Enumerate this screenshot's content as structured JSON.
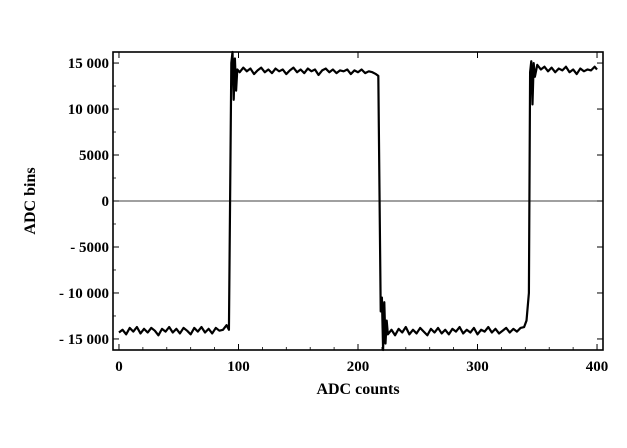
{
  "chart_data": {
    "type": "line",
    "title": "",
    "xlabel": "ADC counts",
    "ylabel": "ADC bins",
    "xlim": [
      -5,
      405
    ],
    "ylim": [
      -16200,
      16200
    ],
    "x_ticks": [
      0,
      100,
      200,
      300,
      400
    ],
    "x_tick_labels": [
      "0",
      "100",
      "200",
      "300",
      "400"
    ],
    "y_ticks": [
      15000,
      10000,
      5000,
      0,
      -5000,
      -10000,
      -15000
    ],
    "y_tick_labels": [
      "15 000",
      "10 000",
      "5000",
      "0",
      "- 5000",
      "- 10 000",
      "- 15 000"
    ],
    "zero_line": true,
    "grid": false,
    "series": [
      {
        "color": "#000000",
        "points": [
          [
            0,
            -14300
          ],
          [
            3,
            -14000
          ],
          [
            6,
            -14500
          ],
          [
            9,
            -13800
          ],
          [
            12,
            -14200
          ],
          [
            15,
            -13700
          ],
          [
            18,
            -14400
          ],
          [
            21,
            -13900
          ],
          [
            24,
            -14300
          ],
          [
            27,
            -13800
          ],
          [
            30,
            -14100
          ],
          [
            33,
            -14600
          ],
          [
            36,
            -13900
          ],
          [
            39,
            -14200
          ],
          [
            42,
            -13700
          ],
          [
            45,
            -14300
          ],
          [
            48,
            -13900
          ],
          [
            51,
            -14400
          ],
          [
            54,
            -13800
          ],
          [
            57,
            -14100
          ],
          [
            60,
            -14500
          ],
          [
            63,
            -13800
          ],
          [
            66,
            -14200
          ],
          [
            69,
            -13700
          ],
          [
            72,
            -14300
          ],
          [
            75,
            -13900
          ],
          [
            78,
            -14400
          ],
          [
            81,
            -13800
          ],
          [
            84,
            -14100
          ],
          [
            87,
            -14000
          ],
          [
            90,
            -13500
          ],
          [
            92,
            -14000
          ],
          [
            94,
            15000
          ],
          [
            95,
            16200
          ],
          [
            96,
            11000
          ],
          [
            97,
            15500
          ],
          [
            98,
            12000
          ],
          [
            99,
            14300
          ],
          [
            101,
            14000
          ],
          [
            104,
            14500
          ],
          [
            107,
            14100
          ],
          [
            110,
            14400
          ],
          [
            113,
            13800
          ],
          [
            116,
            14200
          ],
          [
            119,
            14500
          ],
          [
            122,
            14000
          ],
          [
            125,
            14300
          ],
          [
            128,
            13900
          ],
          [
            131,
            14400
          ],
          [
            134,
            14100
          ],
          [
            137,
            14300
          ],
          [
            140,
            13800
          ],
          [
            143,
            14200
          ],
          [
            146,
            14500
          ],
          [
            149,
            14000
          ],
          [
            152,
            14300
          ],
          [
            155,
            13900
          ],
          [
            158,
            14400
          ],
          [
            161,
            14100
          ],
          [
            164,
            14300
          ],
          [
            167,
            13700
          ],
          [
            170,
            14200
          ],
          [
            173,
            14400
          ],
          [
            176,
            14000
          ],
          [
            179,
            14300
          ],
          [
            182,
            13900
          ],
          [
            185,
            14200
          ],
          [
            188,
            14100
          ],
          [
            191,
            14300
          ],
          [
            194,
            13800
          ],
          [
            197,
            14200
          ],
          [
            200,
            14000
          ],
          [
            203,
            14300
          ],
          [
            206,
            13900
          ],
          [
            209,
            14100
          ],
          [
            212,
            14000
          ],
          [
            215,
            13800
          ],
          [
            217,
            13600
          ],
          [
            219,
            -12000
          ],
          [
            220,
            -10500
          ],
          [
            221,
            -16200
          ],
          [
            222,
            -11000
          ],
          [
            223,
            -15500
          ],
          [
            224,
            -13000
          ],
          [
            225,
            -14500
          ],
          [
            228,
            -14000
          ],
          [
            231,
            -14600
          ],
          [
            234,
            -13900
          ],
          [
            237,
            -14300
          ],
          [
            240,
            -13700
          ],
          [
            243,
            -14500
          ],
          [
            246,
            -14000
          ],
          [
            249,
            -14400
          ],
          [
            252,
            -13800
          ],
          [
            255,
            -14200
          ],
          [
            258,
            -14600
          ],
          [
            261,
            -13900
          ],
          [
            264,
            -14300
          ],
          [
            267,
            -13800
          ],
          [
            270,
            -14400
          ],
          [
            273,
            -14000
          ],
          [
            276,
            -14500
          ],
          [
            279,
            -13900
          ],
          [
            282,
            -14200
          ],
          [
            285,
            -13700
          ],
          [
            288,
            -14400
          ],
          [
            291,
            -14000
          ],
          [
            294,
            -14300
          ],
          [
            297,
            -13800
          ],
          [
            300,
            -14500
          ],
          [
            303,
            -14000
          ],
          [
            306,
            -14200
          ],
          [
            309,
            -13700
          ],
          [
            312,
            -14300
          ],
          [
            315,
            -13900
          ],
          [
            318,
            -14400
          ],
          [
            321,
            -14100
          ],
          [
            324,
            -13800
          ],
          [
            327,
            -14300
          ],
          [
            330,
            -13900
          ],
          [
            333,
            -14200
          ],
          [
            336,
            -13800
          ],
          [
            339,
            -13700
          ],
          [
            341,
            -13000
          ],
          [
            343,
            -10000
          ],
          [
            344,
            14000
          ],
          [
            345,
            15200
          ],
          [
            346,
            10500
          ],
          [
            347,
            15000
          ],
          [
            348,
            13500
          ],
          [
            350,
            14800
          ],
          [
            353,
            14300
          ],
          [
            356,
            14600
          ],
          [
            359,
            14100
          ],
          [
            362,
            14500
          ],
          [
            365,
            14000
          ],
          [
            368,
            14400
          ],
          [
            371,
            14200
          ],
          [
            374,
            14600
          ],
          [
            377,
            14000
          ],
          [
            380,
            14300
          ],
          [
            383,
            13800
          ],
          [
            386,
            14400
          ],
          [
            389,
            14100
          ],
          [
            392,
            14300
          ],
          [
            395,
            14200
          ],
          [
            398,
            14600
          ],
          [
            400,
            14300
          ]
        ]
      }
    ]
  }
}
